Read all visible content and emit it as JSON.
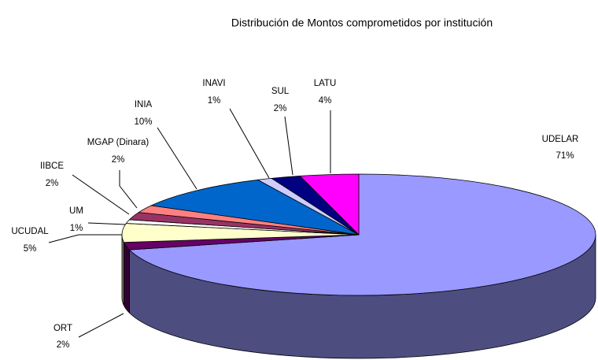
{
  "chart_data": {
    "type": "pie3d",
    "title": "Distribución de Montos comprometidos por institución",
    "categories": [
      "UDELAR",
      "ORT",
      "UCUDAL",
      "UM",
      "IIBCE",
      "MGAP (Dinara)",
      "INIA",
      "INAVI",
      "SUL",
      "LATU"
    ],
    "values": [
      71,
      2,
      5,
      1,
      2,
      2,
      10,
      1,
      2,
      4
    ],
    "value_labels": [
      "71%",
      "2%",
      "5%",
      "1%",
      "2%",
      "2%",
      "10%",
      "1%",
      "2%",
      "4%"
    ],
    "colors": [
      "#9999ff",
      "#660066",
      "#ffffcc",
      "#ffffff",
      "#993366",
      "#ff8080",
      "#0066cc",
      "#ccccff",
      "#000080",
      "#ff00ff"
    ]
  }
}
